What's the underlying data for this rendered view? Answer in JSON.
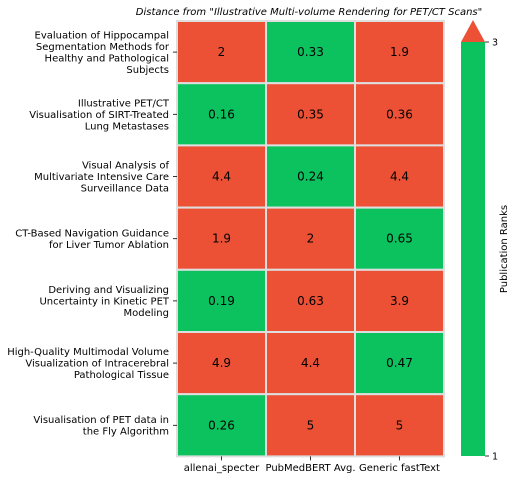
{
  "chart_data": {
    "type": "heatmap",
    "title": "Distance from \"Illustrative Multi-volume Rendering for PET/CT Scans\"",
    "rows": [
      [
        "Evaluation of Hippocampal",
        "Segmentation Methods for",
        "Healthy and Pathological",
        "Subjects"
      ],
      [
        "Illustrative PET/CT",
        "Visualisation of SIRT-Treated",
        "Lung Metastases"
      ],
      [
        "Visual Analysis of",
        "Multivariate Intensive Care",
        "Surveillance Data"
      ],
      [
        "CT-Based Navigation Guidance",
        "for Liver Tumor Ablation"
      ],
      [
        "Deriving and Visualizing",
        "Uncertainty in Kinetic PET",
        "Modeling"
      ],
      [
        "High-Quality Multimodal Volume",
        "Visualization of Intracerebral",
        "Pathological Tissue"
      ],
      [
        "Visualisation of PET data in",
        "the Fly Algorithm"
      ]
    ],
    "columns": [
      "allenai_specter",
      "PubMedBERT Avg.",
      "Generic fastText"
    ],
    "values": [
      [
        "2",
        "0.33",
        "1.9"
      ],
      [
        "0.16",
        "0.35",
        "0.36"
      ],
      [
        "4.4",
        "0.24",
        "4.4"
      ],
      [
        "1.9",
        "2",
        "0.65"
      ],
      [
        "0.19",
        "0.63",
        "3.9"
      ],
      [
        "4.9",
        "4.4",
        "0.47"
      ],
      [
        "0.26",
        "5",
        "5"
      ]
    ],
    "ranks": [
      [
        3,
        1,
        3
      ],
      [
        1,
        3,
        3
      ],
      [
        3,
        1,
        3
      ],
      [
        3,
        3,
        1
      ],
      [
        1,
        3,
        3
      ],
      [
        3,
        3,
        1
      ],
      [
        1,
        3,
        3
      ]
    ],
    "colorbar": {
      "label": "Publication Ranks",
      "ticks": [
        "3",
        "1"
      ],
      "range": [
        1,
        3
      ],
      "extend": "max"
    },
    "colors": {
      "low": "#0bc25e",
      "high": "#ec5136",
      "grid": "#dedede"
    }
  }
}
